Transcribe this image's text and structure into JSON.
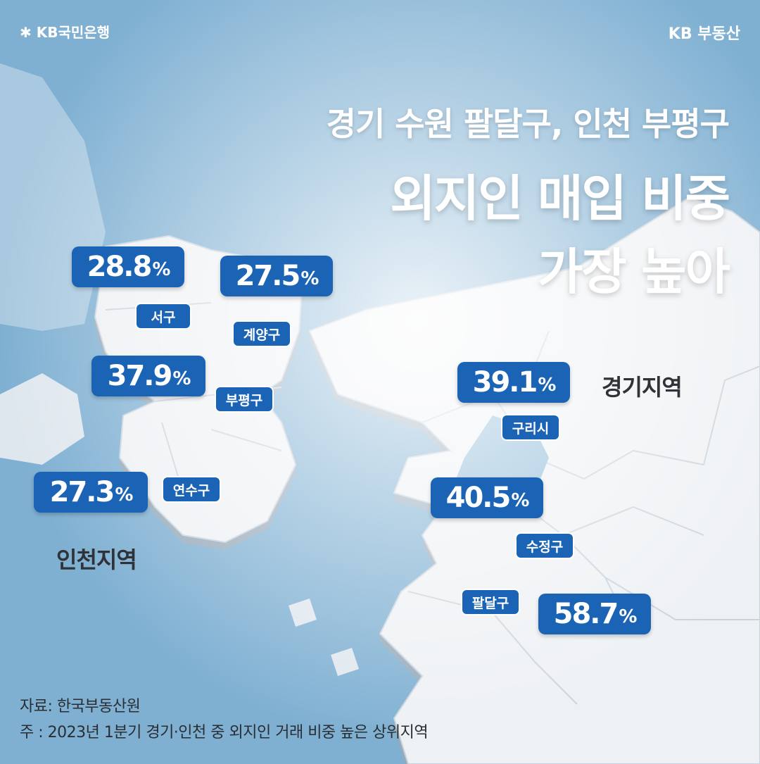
{
  "header": {
    "brand_left": "KB국민은행",
    "brand_right": "KB 부동산"
  },
  "title": {
    "line1": "경기 수원 팔달구, 인천 부평구",
    "line2": "외지인 매입 비중",
    "line3": "가장 높아"
  },
  "regions": {
    "incheon": "인천지역",
    "gyeonggi": "경기지역"
  },
  "markers": [
    {
      "district": "서구",
      "value": "28.8",
      "unit": "%"
    },
    {
      "district": "계양구",
      "value": "27.5",
      "unit": "%"
    },
    {
      "district": "부평구",
      "value": "37.9",
      "unit": "%"
    },
    {
      "district": "연수구",
      "value": "27.3",
      "unit": "%"
    },
    {
      "district": "구리시",
      "value": "39.1",
      "unit": "%"
    },
    {
      "district": "수정구",
      "value": "40.5",
      "unit": "%"
    },
    {
      "district": "팔달구",
      "value": "58.7",
      "unit": "%"
    }
  ],
  "footer": {
    "source": "자료: 한국부동산원",
    "note": "주 : 2023년 1분기 경기·인천 중 외지인 거래 비중 높은 상위지역"
  },
  "colors": {
    "sea": "#7fb0d2",
    "land": "#eef1f4",
    "marker": "#1b63b5"
  }
}
